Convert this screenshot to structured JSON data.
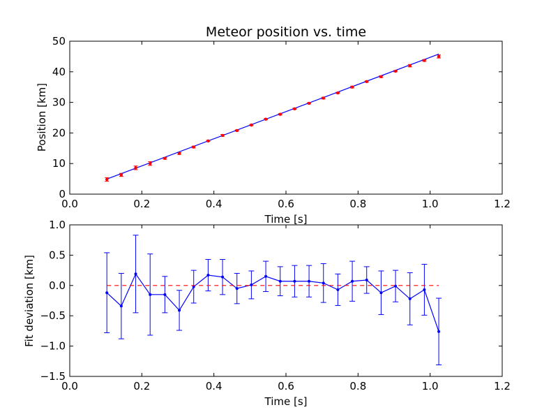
{
  "chart_data": [
    {
      "type": "scatter",
      "title": "Meteor position vs. time",
      "xlabel": "Time [s]",
      "ylabel": "Position [km]",
      "xlim": [
        0.0,
        1.2
      ],
      "ylim": [
        0,
        50
      ],
      "xticks": [
        "0.0",
        "0.2",
        "0.4",
        "0.6",
        "0.8",
        "1.0",
        "1.2"
      ],
      "yticks": [
        "0",
        "10",
        "20",
        "30",
        "40",
        "50"
      ],
      "grid": false,
      "series": [
        {
          "kind": "errorbar-markers",
          "color": "#ff0000",
          "x": [
            0.103,
            0.143,
            0.183,
            0.223,
            0.264,
            0.304,
            0.344,
            0.384,
            0.424,
            0.464,
            0.504,
            0.544,
            0.584,
            0.624,
            0.664,
            0.704,
            0.744,
            0.784,
            0.824,
            0.864,
            0.904,
            0.944,
            0.984,
            1.024
          ],
          "y": [
            4.8,
            6.3,
            8.6,
            10.0,
            11.7,
            13.3,
            15.4,
            17.4,
            19.2,
            20.8,
            22.6,
            24.5,
            26.1,
            27.9,
            29.7,
            31.4,
            33.1,
            35.0,
            36.8,
            38.4,
            40.2,
            42.0,
            43.7,
            45.0
          ],
          "yerr": [
            0.6,
            0.5,
            0.6,
            0.6,
            0.3,
            0.3,
            0.3,
            0.2,
            0.3,
            0.2,
            0.2,
            0.2,
            0.2,
            0.2,
            0.2,
            0.3,
            0.2,
            0.3,
            0.2,
            0.3,
            0.2,
            0.4,
            0.3,
            0.5
          ]
        },
        {
          "kind": "fit-line",
          "color": "#0000ff",
          "x": [
            0.103,
            1.024
          ],
          "y": [
            4.93,
            45.8
          ]
        }
      ]
    },
    {
      "type": "line",
      "xlabel": "Time [s]",
      "ylabel": "Fit deviation [km]",
      "xlim": [
        0.0,
        1.2
      ],
      "ylim": [
        -1.5,
        1.0
      ],
      "xticks": [
        "0.0",
        "0.2",
        "0.4",
        "0.6",
        "0.8",
        "1.0",
        "1.2"
      ],
      "yticks": [
        "−1.5",
        "−1.0",
        "−0.5",
        "0.0",
        "0.5",
        "1.0"
      ],
      "grid": false,
      "series": [
        {
          "kind": "errorbar-line",
          "color": "#0000ff",
          "x": [
            0.103,
            0.143,
            0.183,
            0.223,
            0.264,
            0.304,
            0.344,
            0.384,
            0.424,
            0.464,
            0.504,
            0.544,
            0.584,
            0.624,
            0.664,
            0.704,
            0.744,
            0.784,
            0.824,
            0.864,
            0.904,
            0.944,
            0.984,
            1.024
          ],
          "y": [
            -0.12,
            -0.34,
            0.19,
            -0.15,
            -0.15,
            -0.41,
            -0.02,
            0.17,
            0.14,
            -0.05,
            0.01,
            0.15,
            0.07,
            0.07,
            0.07,
            0.04,
            -0.07,
            0.07,
            0.09,
            -0.12,
            -0.01,
            -0.22,
            -0.07,
            -0.76
          ],
          "yerr": [
            0.66,
            0.54,
            0.64,
            0.67,
            0.3,
            0.33,
            0.27,
            0.26,
            0.29,
            0.25,
            0.23,
            0.25,
            0.24,
            0.26,
            0.26,
            0.32,
            0.26,
            0.33,
            0.22,
            0.36,
            0.26,
            0.43,
            0.42,
            0.55
          ]
        },
        {
          "kind": "zero-reference",
          "color": "#ff0000",
          "style": "dashed",
          "x": [
            0.103,
            1.024
          ],
          "y": [
            0,
            0
          ]
        }
      ]
    }
  ]
}
